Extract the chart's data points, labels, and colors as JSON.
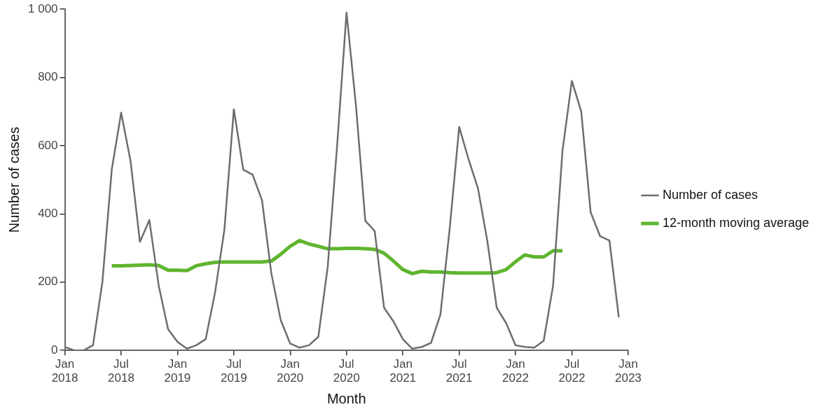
{
  "chart_data": {
    "type": "line",
    "xlabel": "Month",
    "ylabel": "Number of cases",
    "xlim": [
      "2018-01",
      "2023-01"
    ],
    "ylim": [
      0,
      1000
    ],
    "xticks": [
      {
        "value": "2018-01",
        "label": "Jan\n2018"
      },
      {
        "value": "2018-07",
        "label": "Jul\n2018"
      },
      {
        "value": "2019-01",
        "label": "Jan\n2019"
      },
      {
        "value": "2019-07",
        "label": "Jul\n2019"
      },
      {
        "value": "2020-01",
        "label": "Jan\n2020"
      },
      {
        "value": "2020-07",
        "label": "Jul\n2020"
      },
      {
        "value": "2021-01",
        "label": "Jan\n2021"
      },
      {
        "value": "2021-07",
        "label": "Jul\n2021"
      },
      {
        "value": "2022-01",
        "label": "Jan\n2022"
      },
      {
        "value": "2022-07",
        "label": "Jul\n2022"
      },
      {
        "value": "2023-01",
        "label": "Jan\n2023"
      }
    ],
    "yticks": [
      0,
      200,
      400,
      600,
      800,
      {
        "value": 1000,
        "label": "1 000"
      }
    ],
    "grid": false,
    "legend": "right",
    "marker": "none",
    "line_style": "solid",
    "series": [
      {
        "name": "Number of cases",
        "color": "#6d6d6d",
        "x": [
          "2018-01",
          "2018-02",
          "2018-03",
          "2018-04",
          "2018-05",
          "2018-06",
          "2018-07",
          "2018-08",
          "2018-09",
          "2018-10",
          "2018-11",
          "2018-12",
          "2019-01",
          "2019-02",
          "2019-03",
          "2019-04",
          "2019-05",
          "2019-06",
          "2019-07",
          "2019-08",
          "2019-09",
          "2019-10",
          "2019-11",
          "2019-12",
          "2020-01",
          "2020-02",
          "2020-03",
          "2020-04",
          "2020-05",
          "2020-06",
          "2020-07",
          "2020-08",
          "2020-09",
          "2020-10",
          "2020-11",
          "2020-12",
          "2021-01",
          "2021-02",
          "2021-03",
          "2021-04",
          "2021-05",
          "2021-06",
          "2021-07",
          "2021-08",
          "2021-09",
          "2021-10",
          "2021-11",
          "2021-12",
          "2022-01",
          "2022-02",
          "2022-03",
          "2022-04",
          "2022-05",
          "2022-06",
          "2022-07",
          "2022-08",
          "2022-09",
          "2022-10",
          "2022-11",
          "2022-12"
        ],
        "values": [
          10,
          0,
          0,
          15,
          200,
          530,
          697,
          555,
          318,
          382,
          190,
          62,
          25,
          5,
          15,
          33,
          170,
          355,
          707,
          530,
          515,
          440,
          225,
          88,
          20,
          8,
          15,
          40,
          245,
          600,
          990,
          720,
          380,
          350,
          125,
          85,
          33,
          5,
          10,
          22,
          105,
          360,
          655,
          560,
          475,
          320,
          125,
          80,
          15,
          10,
          8,
          28,
          190,
          585,
          790,
          700,
          405,
          335,
          322,
          97
        ]
      },
      {
        "name": "12-month moving average",
        "color": "#5fb52e",
        "x": [
          "2018-06",
          "2018-07",
          "2018-08",
          "2018-09",
          "2018-10",
          "2018-11",
          "2018-12",
          "2019-01",
          "2019-02",
          "2019-03",
          "2019-04",
          "2019-05",
          "2019-06",
          "2019-07",
          "2019-08",
          "2019-09",
          "2019-10",
          "2019-11",
          "2019-12",
          "2020-01",
          "2020-02",
          "2020-03",
          "2020-04",
          "2020-05",
          "2020-06",
          "2020-07",
          "2020-08",
          "2020-09",
          "2020-10",
          "2020-11",
          "2020-12",
          "2021-01",
          "2021-02",
          "2021-03",
          "2021-04",
          "2021-05",
          "2021-06",
          "2021-07",
          "2021-08",
          "2021-09",
          "2021-10",
          "2021-11",
          "2021-12",
          "2022-01",
          "2022-02",
          "2022-03",
          "2022-04",
          "2022-05",
          "2022-06"
        ],
        "values": [
          248,
          248,
          249,
          250,
          251,
          249,
          235,
          235,
          234,
          248,
          254,
          258,
          259,
          259,
          259,
          259,
          259,
          262,
          282,
          305,
          322,
          312,
          305,
          298,
          298,
          299,
          299,
          298,
          296,
          285,
          262,
          237,
          225,
          232,
          230,
          230,
          228,
          227,
          227,
          227,
          227,
          228,
          237,
          260,
          280,
          274,
          274,
          292,
          292
        ]
      }
    ]
  }
}
